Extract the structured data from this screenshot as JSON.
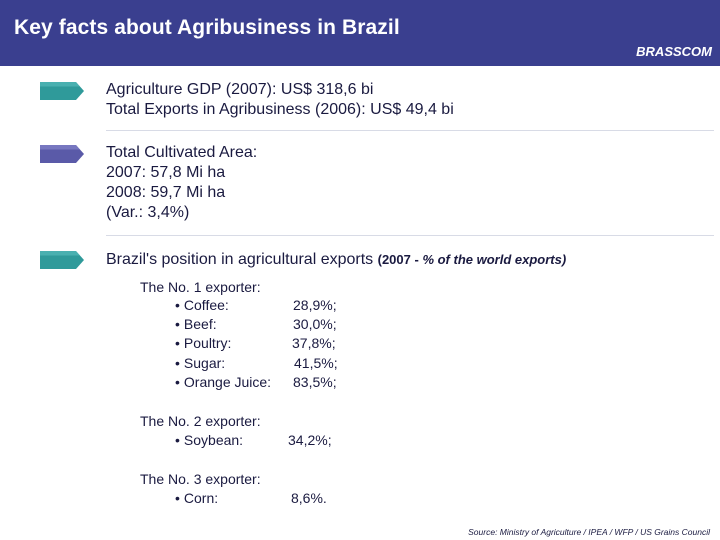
{
  "header": {
    "title": "Key facts about Agribusiness in Brazil",
    "brand": "BRASSCOM"
  },
  "colors": {
    "header_bg": "#3a3f8f",
    "arrow_teal": "#2f9a9a",
    "arrow_purple": "#5a5aa8",
    "text": "#1a1a40"
  },
  "section1": {
    "line1": "Agriculture GDP (2007): US$ 318,6 bi",
    "line2": "Total Exports in Agribusiness (2006): US$ 49,4 bi"
  },
  "section2": {
    "line1": "Total Cultivated Area:",
    "line2": "2007: 57,8 Mi ha",
    "line3": "2008: 59,7 Mi ha",
    "line4": "(Var.: 3,4%)"
  },
  "section3": {
    "heading": "Brazil's position in agricultural exports",
    "note_prefix": "(2007 - ",
    "note_italic": "% of the world exports)",
    "groups": [
      {
        "title": "The No. 1 exporter:",
        "items": [
          {
            "label": "Coffee:",
            "value": "28,9%;"
          },
          {
            "label": "Beef:",
            "value": "30,0%;"
          },
          {
            "label": "Poultry:",
            "value": "37,8%;"
          },
          {
            "label": "Sugar:",
            "value": "41,5%;"
          },
          {
            "label": "Orange Juice:",
            "value": "83,5%;"
          }
        ]
      },
      {
        "title": "The No. 2 exporter:",
        "items": [
          {
            "label": "Soybean:",
            "value": "34,2%;"
          }
        ]
      },
      {
        "title": "The No. 3 exporter:",
        "items": [
          {
            "label": "Corn:",
            "value": "8,6%."
          }
        ]
      }
    ]
  },
  "footer": {
    "source": "Source: Ministry of Agriculture / IPEA / WFP / US Grains Council"
  }
}
